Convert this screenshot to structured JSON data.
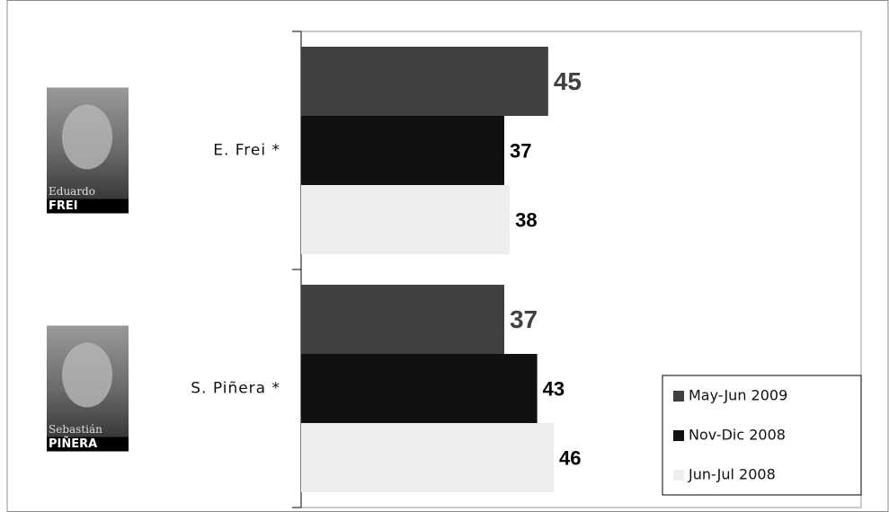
{
  "chart_data": {
    "type": "hbar",
    "categories": [
      "E. Frei *",
      "S. Piñera *"
    ],
    "series": [
      {
        "name": "May-Jun 2009",
        "color": "#404040",
        "values": [
          45,
          37
        ]
      },
      {
        "name": "Nov-Dic 2008",
        "color": "#111111",
        "values": [
          37,
          43
        ]
      },
      {
        "name": "Jun-Jul 2008",
        "color": "#eeeeee",
        "values": [
          38,
          46
        ]
      }
    ],
    "xlim": [
      0,
      102
    ],
    "legend": "lower-right",
    "photos": [
      {
        "first_name": "Eduardo",
        "last_name": "FREI"
      },
      {
        "first_name": "Sebastián",
        "last_name": "PIÑERA"
      }
    ]
  }
}
